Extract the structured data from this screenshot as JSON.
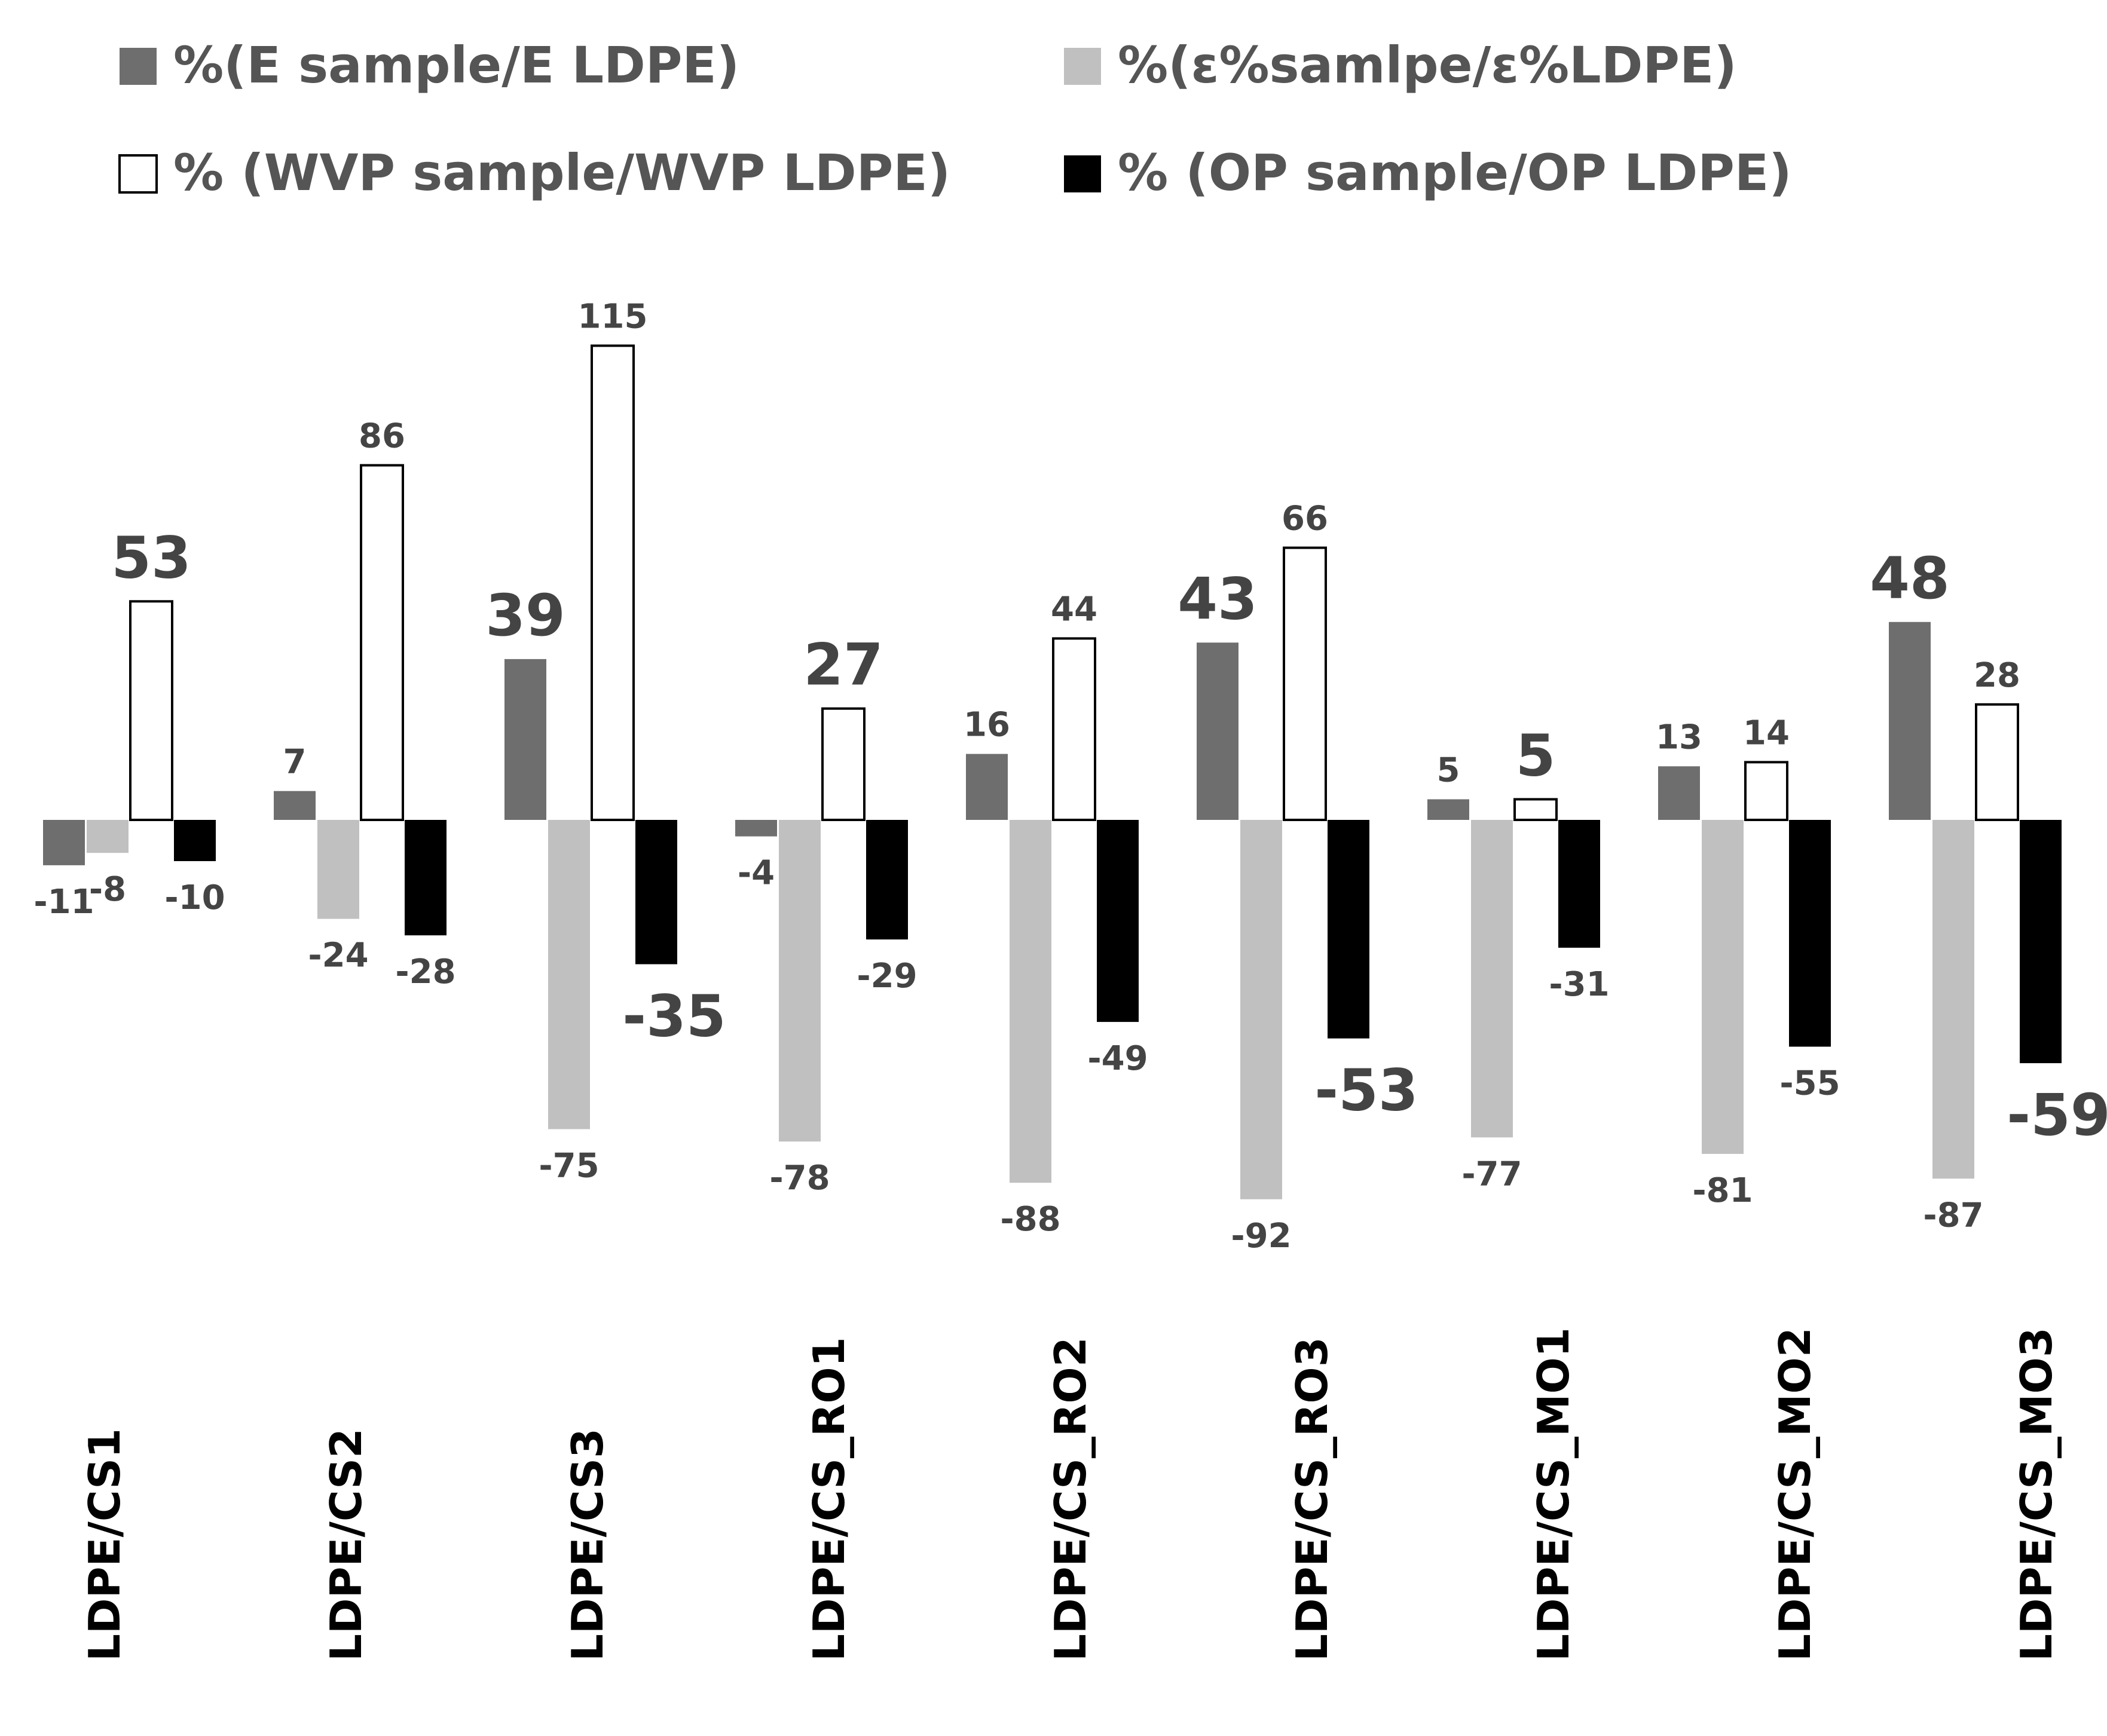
{
  "chart_data": {
    "type": "bar",
    "title": "",
    "xlabel": "",
    "ylabel": "",
    "ylim": [
      -92,
      115
    ],
    "grid": false,
    "legend_position": "top",
    "categories": [
      "LDPE/CS1",
      "LDPE/CS2",
      "LDPE/CS3",
      "LDPE/CS_RO1",
      "LDPE/CS_RO2",
      "LDPE/CS_RO3",
      "LDPE/CS_MO1",
      "LDPE/CS_MO2",
      "LDPE/CS_MO3"
    ],
    "series": [
      {
        "name": "%(E sample/E LDPE)",
        "color": "#6e6e6e",
        "values": [
          -11,
          7,
          39,
          -4,
          16,
          43,
          5,
          13,
          48
        ],
        "labels": [
          "-11",
          "7",
          "39",
          "-4",
          "16",
          "43",
          "5",
          "13",
          "48"
        ]
      },
      {
        "name": "%(ε%samlpe/ε%LDPE)",
        "color": "#c0c0c0",
        "values": [
          -8,
          -24,
          -75,
          -78,
          -88,
          -92,
          -77,
          -81,
          -87
        ],
        "labels": [
          "-8",
          "-24",
          "-75",
          "-78",
          "-88",
          "-92",
          "-77",
          "-81",
          "-87"
        ]
      },
      {
        "name": "% (WVP sample/WVP LDPE)",
        "color": "#ffffff",
        "values": [
          53,
          86,
          115,
          27,
          44,
          66,
          5,
          14,
          28
        ],
        "labels": [
          "53",
          "86",
          "115",
          "27",
          "44",
          "66",
          "5",
          "14",
          "28"
        ]
      },
      {
        "name": "% (OP sample/OP LDPE)",
        "color": "#000000",
        "values": [
          -10,
          -28,
          -35,
          -29,
          -49,
          -53,
          -31,
          -55,
          -59
        ],
        "labels": [
          "-10",
          "-28",
          "-35",
          "-29",
          "-49",
          "-53",
          "-31",
          "-55",
          "-59"
        ]
      }
    ]
  }
}
